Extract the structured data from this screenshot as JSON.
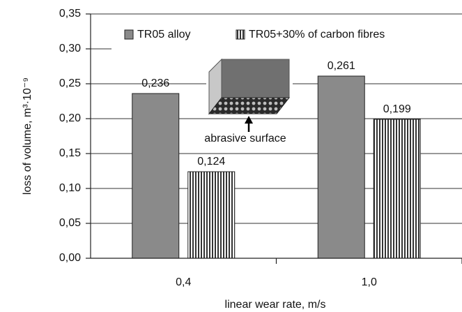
{
  "chart_data": {
    "type": "bar",
    "categories": [
      "0,4",
      "1,0"
    ],
    "series": [
      {
        "name": "TR05 alloy",
        "color": "#8a8a8a",
        "pattern": "solid",
        "values": [
          0.236,
          0.261
        ],
        "value_labels": [
          "0,236",
          "0,261"
        ]
      },
      {
        "name": "TR05+30% of carbon fibres",
        "color": "#000000",
        "pattern": "vertical-lines",
        "values": [
          0.124,
          0.199
        ],
        "value_labels": [
          "0,124",
          "0,199"
        ]
      }
    ],
    "ylim": [
      0,
      0.35
    ],
    "yticks": [
      {
        "value": 0,
        "label": "0,00"
      },
      {
        "value": 0.05,
        "label": "0,05"
      },
      {
        "value": 0.1,
        "label": "0,10"
      },
      {
        "value": 0.15,
        "label": "0,15"
      },
      {
        "value": 0.2,
        "label": "0,20"
      },
      {
        "value": 0.25,
        "label": "0,25"
      },
      {
        "value": 0.3,
        "label": "0,30"
      },
      {
        "value": 0.35,
        "label": "0,35"
      }
    ],
    "grid": true,
    "legend": "top",
    "x_label": "linear wear rate, m/s",
    "y_label": "loss of volume, m³·10⁻⁹",
    "annotation": "abrasive surface"
  }
}
